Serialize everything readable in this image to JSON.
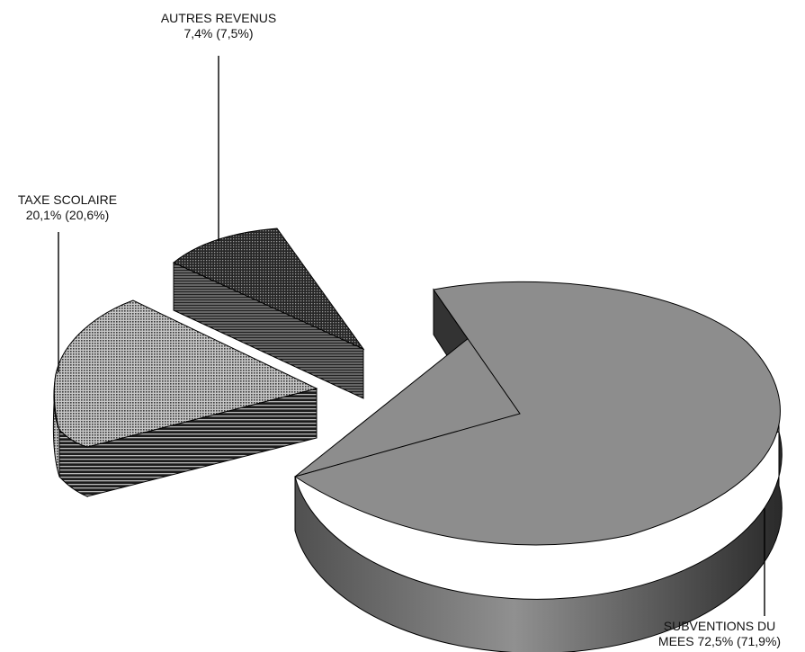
{
  "chart_data": {
    "type": "pie",
    "style": "3d-exploded",
    "slices": [
      {
        "name": "AUTRES REVENUS",
        "value": 7.4,
        "previous_value": 7.5,
        "line1": "AUTRES REVENUS",
        "line2": "7,4% (7,5%)"
      },
      {
        "name": "TAXE SCOLAIRE",
        "value": 20.1,
        "previous_value": 20.6,
        "line1": "TAXE SCOLAIRE",
        "line2": "20,1% (20,6%)"
      },
      {
        "name": "SUBVENTIONS DU MEES",
        "value": 72.5,
        "previous_value": 71.9,
        "line1": "SUBVENTIONS DU",
        "line2": "MEES  72,5% (71,9%)"
      }
    ]
  }
}
